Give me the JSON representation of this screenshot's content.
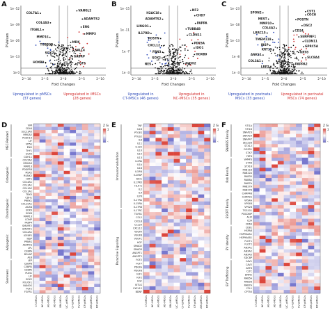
{
  "panels": {
    "A": {
      "letter": "A",
      "yticks": [
        "1e -52",
        "1e -39",
        "1e -26",
        "1e -13",
        "1e 0"
      ],
      "xticks": [
        "2^-10",
        "2^-5",
        "2^0",
        "2^5",
        "2^10"
      ],
      "ylabel": "P-Values",
      "xlabel": "Fold Changes",
      "genes": [
        "VANGL2",
        "COL7A1",
        "ADAMTS2",
        "COL4A3",
        "ENG",
        "ITGBL1",
        "MMP3",
        "MMP16",
        "MDK",
        "TUBB2B",
        "SALL4",
        "SOX2",
        "GABRP",
        "HOXB9",
        "FGF5"
      ],
      "cap_left": "Upregulated in pMSCs\n(37 genes)",
      "cap_right": "Upregulated in iMSCs\n(28 genes)"
    },
    "B": {
      "letter": "B",
      "yticks": [
        "1e -15",
        "1e -11",
        "1e -7",
        "1e -3"
      ],
      "xticks": [
        "2^-10",
        "2^-5",
        "2^0",
        "2^5",
        "2^10"
      ],
      "ylabel": "P-Values",
      "xlabel": "Fold Changes",
      "genes": [
        "NF2",
        "H2AC18",
        "CHD7",
        "ADAMTS2",
        "PAPPA",
        "LINGO1",
        "TUBB4B",
        "IL17RD",
        "CLDN11",
        "POSTN",
        "PDE5A",
        "CXCL12",
        "IDO1",
        "FBN3",
        "HOXB9",
        "SOX2",
        "ALDH2",
        "NES"
      ],
      "cap_left": "Upregulated in\nCT-iMSCs (46 genes)",
      "cap_right": "Upregulated in\nNC-iMSCs (35 genes)"
    },
    "C": {
      "letter": "C",
      "yticks": [
        "1e -23",
        "1e -18",
        "1e -13",
        "1e -8",
        "1e -3"
      ],
      "xticks": [
        "2^-10",
        "2^-5",
        "2^0",
        "2^5",
        "2^10"
      ],
      "ylabel": "P-Values",
      "xlabel": "Fold Changes",
      "genes": [
        "CST1",
        "SPON2",
        "COCH",
        "MEST",
        "POSTN",
        "MMP10",
        "DSC2",
        "COL4A2",
        "CD24",
        "LRRC15",
        "SERPINF1",
        "TMEM119",
        "CLDN11",
        "IBSP",
        "GPRC5A",
        "KRT19",
        "KRT8",
        "ANKS1",
        "SLC8A4",
        "COL3A1",
        "PAPPA2",
        "LRP2"
      ],
      "cap_left": "Upregulated in postnatal\nMSCs (33 genes)",
      "cap_right": "Upregulated in perinatal\nMSCs (74 genes)"
    },
    "D": {
      "letter": "D",
      "zscore_label": "Z Score",
      "zmax": "3.5",
      "zmin": "-2.4",
      "groups": [
        "MSC-Related",
        "Osteogenic",
        "Chondrogenic",
        "Adipogenic",
        "Stemness"
      ],
      "rows": [
        "VIM",
        "CD44",
        "SLC13A5",
        "HMGA2",
        "PCDH10",
        "LIF",
        "NT5E",
        "ENG",
        "THY1",
        "DLX5",
        "CDH11",
        "COL5A2",
        "HMGA3",
        "MMP13",
        "PDGFRB",
        "MSX2",
        "RUNX2",
        "HAT1",
        "COL4A1",
        "COL3A1",
        "COL1A2",
        "COL1A1",
        "TBX5",
        "CDH1",
        "PRRX1",
        "COL10A1",
        "ACAN",
        "SOX9",
        "SOX6",
        "MMP13",
        "COMP",
        "FABP4",
        "SMURF2",
        "SMURF1",
        "COL2A1",
        "IGFBP2",
        "IBSP",
        "PPARG",
        "ADIPOQ",
        "LPL",
        "CEBPA",
        "BGLAP",
        "ALB",
        "LEP",
        "CEBPB",
        "CEBPD",
        "CEBPA",
        "PLIN1",
        "LIF",
        "SOX2",
        "POU5F1",
        "NANOG",
        "FGF2",
        "FGFR1"
      ],
      "cols": [
        "CT-iMSCs",
        "NC-iMSCs",
        "AG-iMSCs",
        "AD-iMSCs",
        "BM-iMSCs",
        "UC-pMSCs",
        "CH-pMSCs",
        "CV-pMSCs",
        "CP-pMSCs",
        "AM-pMSCs",
        "DP-pMSCs"
      ]
    },
    "E": {
      "letter": "E",
      "zscore_label": "Z Score",
      "zmax": "3.5",
      "zmin": "-2.7",
      "groups": [
        "Immunomodulation",
        "Paracrine Signaling"
      ],
      "rows": [
        "TNF",
        "IL1B",
        "PTGES",
        "PTGS2",
        "IL6",
        "IL11",
        "IL12A",
        "IL10",
        "IL15",
        "IL13",
        "IL2RA",
        "IL1A",
        "IL18",
        "IL1RN",
        "IL1RAP",
        "IDO1",
        "IL17RD",
        "HLA-G",
        "IL2",
        "IL4",
        "IL7R",
        "IL17RA",
        "IL15RA",
        "IL17RB",
        "IL17RC",
        "TGFB1",
        "CCL2",
        "CXCL8",
        "CCL20",
        "CXCL12",
        "VEGFA",
        "VEGFB",
        "VEGFC",
        "HGF",
        "SMAD2",
        "SMAD3",
        "ANGPT1",
        "ANGPT2",
        "FGF2",
        "FGF7",
        "PDGFA",
        "PDGFB",
        "IGF1",
        "IGF2",
        "EGF",
        "KITLG",
        "CXCL12",
        "BDNF"
      ],
      "cols": [
        "CT-iMSCs",
        "NC-iMSCs",
        "AG-iMSCs",
        "AD-iMSCs",
        "BM-iMSCs",
        "UC-pMSCs",
        "CH-pMSCs",
        "CV-pMSCs",
        "CP-pMSCs",
        "AM-pMSCs",
        "DP-pMSCs"
      ]
    },
    "F": {
      "letter": "F",
      "zscore_label": "Z Score",
      "zmax": "3.6",
      "zmin": "-3.7",
      "groups": [
        "SNARES Family",
        "Rab Family",
        "ESCRT Family",
        "EV Identity",
        "EV Trafficking"
      ],
      "rows": [
        "VTI1A",
        "VTI1B",
        "SNAP23",
        "SNAP29",
        "SNAP47",
        "SEC22B",
        "STX12",
        "GOSR1",
        "STX7",
        "YKT6",
        "VAMP3",
        "STX6",
        "STX16",
        "RAB11B",
        "RAB22A",
        "RAB35",
        "RAB8A",
        "RAB7A",
        "RAB27A",
        "RAB27B",
        "CHMP4B",
        "CHMP2A",
        "VPS4A",
        "VPS4B",
        "VPS28",
        "TSG101",
        "PDCD6IP",
        "ALIX",
        "CD9",
        "CD63",
        "CD81",
        "HSPA8",
        "HSP90AA1",
        "HSP90AB1",
        "FLOT1",
        "FLOT2",
        "ANXA1",
        "ANXA2",
        "ANXA5",
        "SDCBP",
        "CAV1",
        "CAV2",
        "ARF6",
        "CLTC",
        "DNM2",
        "RAB5A",
        "RAB5B",
        "RAB7A",
        "CFL1",
        "CPT50"
      ],
      "cols": [
        "CT-iMSCs",
        "NC-iMSCs",
        "AG-iMSCs",
        "AD-iMSCs",
        "BM-iMSCs",
        "UC-pMSCs",
        "CH-pMSCs",
        "CV-pMSCs",
        "CP-pMSCs",
        "AM-pMSCs",
        "DP-pMSCs"
      ]
    }
  }
}
